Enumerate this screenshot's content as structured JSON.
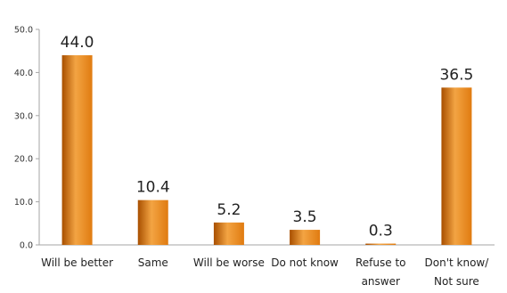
{
  "chart_data": {
    "type": "bar",
    "title": "",
    "xlabel": "",
    "ylabel": "",
    "ylim": [
      0,
      50
    ],
    "yticks": [
      "0.0",
      "10.0",
      "20.0",
      "30.0",
      "40.0",
      "50.0"
    ],
    "ytick_values": [
      0,
      10,
      20,
      30,
      40,
      50
    ],
    "grid": false,
    "legend": "none",
    "bar_color": "#e07b10",
    "bar_color_dark": "#a84f00",
    "bar_color_light": "#f3a443",
    "categories": [
      [
        "Will be better"
      ],
      [
        "Same"
      ],
      [
        "Will be worse"
      ],
      [
        "Do not know"
      ],
      [
        "Refuse to",
        "answer"
      ],
      [
        "Don't know/",
        "Not sure"
      ]
    ],
    "values": [
      44.0,
      10.4,
      5.2,
      3.5,
      0.3,
      36.5
    ],
    "data_labels": [
      "44.0",
      "10.4",
      "5.2",
      "3.5",
      "0.3",
      "36.5"
    ]
  }
}
